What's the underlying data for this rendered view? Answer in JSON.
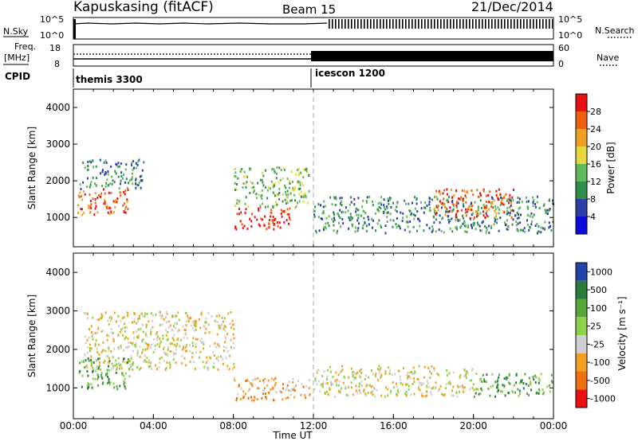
{
  "header": {
    "radar": "Kapuskasing (fitACF)",
    "beam": "Beam 15",
    "date": "21/Dec/2014"
  },
  "strips": {
    "nsky_label": "N.Sky",
    "nsky_ticks": [
      "10^5",
      "10^0"
    ],
    "nsearch_label": "N.Search",
    "nsearch_ticks": [
      "10^5",
      "10^0"
    ],
    "freq_label_1": "Freq.",
    "freq_label_2": "[MHz]",
    "freq_ticks": [
      "18",
      "8"
    ],
    "nave_label": "Nave",
    "nave_ticks": [
      "60",
      "0"
    ],
    "cpid_label": "CPID",
    "cpid_segments": [
      {
        "name": "themis 3300",
        "start_ut": 0
      },
      {
        "name": "icescon 1200",
        "start_ut": 12
      }
    ]
  },
  "colors": {
    "power_scale": [
      "#0a0adc",
      "#2a3fa8",
      "#2f8f4a",
      "#5fb85a",
      "#e6d83a",
      "#f0a020",
      "#f06010",
      "#e81010"
    ],
    "velocity_scale": [
      "#2244aa",
      "#2a7a3a",
      "#56a83a",
      "#8ed04a",
      "#d0d0d0",
      "#f2a020",
      "#f07010",
      "#e81010"
    ]
  },
  "chart_data": [
    {
      "type": "heatmap",
      "name": "power-panel",
      "ylabel": "Slant Range [km]",
      "yticks": [
        "1000",
        "2000",
        "3000",
        "4000"
      ],
      "ylim": [
        200,
        4500
      ],
      "xlim": [
        0,
        24
      ],
      "colorbar": {
        "label": "Power [dB]",
        "ticks": [
          "4",
          "8",
          "12",
          "16",
          "20",
          "24",
          "28"
        ],
        "range": [
          0,
          32
        ]
      },
      "regions": [
        {
          "ut": [
            0.2,
            2.8
          ],
          "range_km": [
            1100,
            1800
          ],
          "value": 26
        },
        {
          "ut": [
            0.3,
            3.5
          ],
          "range_km": [
            1800,
            2600
          ],
          "value": 8
        },
        {
          "ut": [
            8.0,
            10.8
          ],
          "range_km": [
            700,
            1300
          ],
          "value": 28
        },
        {
          "ut": [
            8.0,
            11.8
          ],
          "range_km": [
            1300,
            2400
          ],
          "value": 14
        },
        {
          "ut": [
            12.0,
            24.0
          ],
          "range_km": [
            600,
            1600
          ],
          "value": 10
        },
        {
          "ut": [
            18.0,
            22.0
          ],
          "range_km": [
            1000,
            1800
          ],
          "value": 24
        }
      ]
    },
    {
      "type": "heatmap",
      "name": "velocity-panel",
      "ylabel": "Slant Range [km]",
      "yticks": [
        "1000",
        "2000",
        "3000",
        "4000"
      ],
      "ylim": [
        200,
        4500
      ],
      "xlim": [
        0,
        24
      ],
      "xlabel": "Time UT",
      "xticks": [
        "00:00",
        "04:00",
        "08:00",
        "12:00",
        "16:00",
        "20:00",
        "00:00"
      ],
      "colorbar": {
        "label": "Velocity [m s⁻¹]",
        "ticks": [
          "1000",
          "500",
          "100",
          "25",
          "-25",
          "-100",
          "-500",
          "-1000"
        ]
      },
      "regions": [
        {
          "ut": [
            0.2,
            2.8
          ],
          "range_km": [
            1000,
            1800
          ],
          "value": 100
        },
        {
          "ut": [
            0.5,
            8.0
          ],
          "range_km": [
            1500,
            3000
          ],
          "value": 0
        },
        {
          "ut": [
            8.0,
            11.8
          ],
          "range_km": [
            700,
            1300
          ],
          "value": -100
        },
        {
          "ut": [
            12.0,
            20.0
          ],
          "range_km": [
            800,
            1600
          ],
          "value": 0
        },
        {
          "ut": [
            20.0,
            24.0
          ],
          "range_km": [
            800,
            1400
          ],
          "value": 100
        }
      ]
    }
  ]
}
